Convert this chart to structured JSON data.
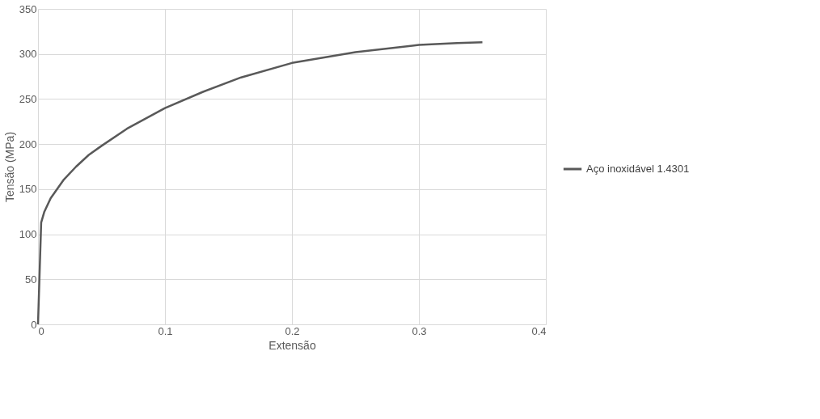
{
  "chart_data": {
    "type": "line",
    "xlabel": "Extensão",
    "ylabel": "Tensão (MPa)",
    "xlim": [
      0,
      0.4
    ],
    "xticks": [
      0,
      {
        "value": 0.1,
        "label": "0.1"
      },
      {
        "value": 0.2,
        "label": "0.2"
      },
      {
        "value": 0.3,
        "label": "0.3"
      },
      {
        "value": 0.4,
        "label": "0.4"
      }
    ],
    "ylim": [
      0,
      350
    ],
    "yticks": [
      0,
      50,
      100,
      150,
      200,
      250,
      300,
      350
    ],
    "grid": true,
    "legend": "right",
    "marker": "none",
    "line_style": "solid",
    "series": [
      {
        "name": "Aço inoxidável 1.4301",
        "color": "#595959",
        "x": [
          0,
          0.0025,
          0.005,
          0.01,
          0.02,
          0.03,
          0.04,
          0.05,
          0.07,
          0.1,
          0.13,
          0.16,
          0.2,
          0.25,
          0.3,
          0.33,
          0.35
        ],
        "values": [
          0,
          113,
          125,
          140,
          160,
          175,
          188,
          198,
          217,
          240,
          258,
          274,
          290,
          302,
          310,
          312,
          313
        ]
      }
    ]
  }
}
